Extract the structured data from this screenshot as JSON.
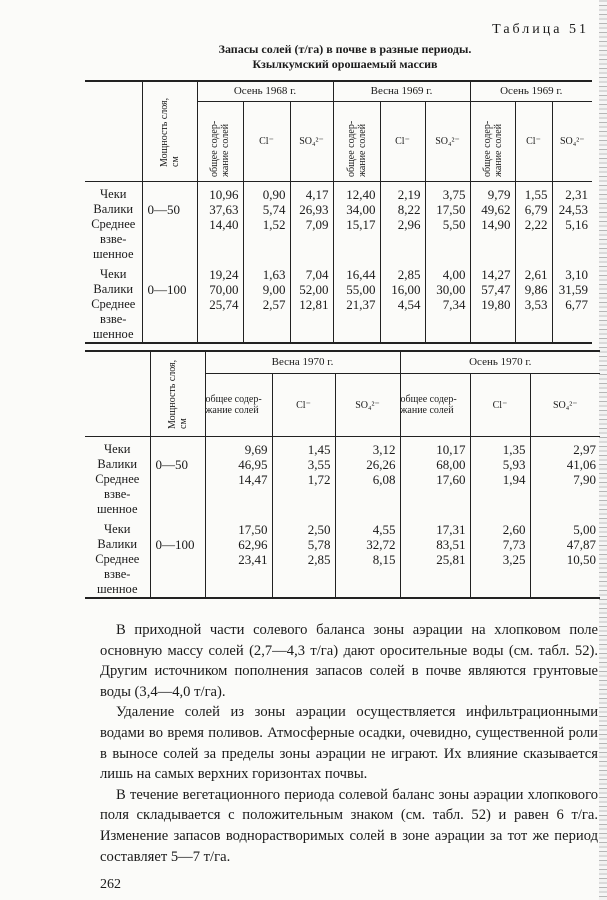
{
  "table_label": "Таблица 51",
  "title_lines": [
    "Запасы солей (т/га) в почве в разные периоды.",
    "Кзылкумский орошаемый массив"
  ],
  "thickness_header_1": "Мощность слоя, см",
  "thickness_header_2": "Мощность слоя, см",
  "col_total": "общее содер-жание солей",
  "col_cl": "Cl⁻",
  "col_so4": "SO₄²⁻",
  "row_labels": [
    "Чеки",
    "Валики",
    "Среднее",
    "взве-",
    "шенное"
  ],
  "table1": {
    "groups": [
      "Осень 1968 г.",
      "Весна 1969 г.",
      "Осень 1969 г."
    ],
    "rows": [
      {
        "thickness": "0—50",
        "values": [
          [
            "10,96",
            "37,63",
            "14,40"
          ],
          [
            "0,90",
            "5,74",
            "1,52"
          ],
          [
            "4,17",
            "26,93",
            "7,09"
          ],
          [
            "12,40",
            "34,00",
            "15,17"
          ],
          [
            "2,19",
            "8,22",
            "2,96"
          ],
          [
            "3,75",
            "17,50",
            "5,50"
          ],
          [
            "9,79",
            "49,62",
            "14,90"
          ],
          [
            "1,55",
            "6,79",
            "2,22"
          ],
          [
            "2,31",
            "24,53",
            "5,16"
          ]
        ]
      },
      {
        "thickness": "0—100",
        "values": [
          [
            "19,24",
            "70,00",
            "25,74"
          ],
          [
            "1,63",
            "9,00",
            "2,57"
          ],
          [
            "7,04",
            "52,00",
            "12,81"
          ],
          [
            "16,44",
            "55,00",
            "21,37"
          ],
          [
            "2,85",
            "16,00",
            "4,54"
          ],
          [
            "4,00",
            "30,00",
            "7,34"
          ],
          [
            "14,27",
            "57,47",
            "19,80"
          ],
          [
            "2,61",
            "9,86",
            "3,53"
          ],
          [
            "3,10",
            "31,59",
            "6,77"
          ]
        ]
      }
    ]
  },
  "table2": {
    "groups": [
      "Весна 1970 г.",
      "Осень 1970 г."
    ],
    "rows": [
      {
        "thickness": "0—50",
        "values": [
          [
            "9,69",
            "46,95",
            "14,47"
          ],
          [
            "1,45",
            "3,55",
            "1,72"
          ],
          [
            "3,12",
            "26,26",
            "6,08"
          ],
          [
            "10,17",
            "68,00",
            "17,60"
          ],
          [
            "1,35",
            "5,93",
            "1,94"
          ],
          [
            "2,97",
            "41,06",
            "7,90"
          ]
        ]
      },
      {
        "thickness": "0—100",
        "values": [
          [
            "17,50",
            "62,96",
            "23,41"
          ],
          [
            "2,50",
            "5,78",
            "2,85"
          ],
          [
            "4,55",
            "32,72",
            "8,15"
          ],
          [
            "17,31",
            "83,51",
            "25,81"
          ],
          [
            "2,60",
            "7,73",
            "3,25"
          ],
          [
            "5,00",
            "47,87",
            "10,50"
          ]
        ]
      }
    ]
  },
  "paragraphs": [
    "В приходной части солевого баланса зоны аэрации на хлопковом поле основную массу солей (2,7—4,3 т/га) дают оросительные воды (см. табл. 52). Другим источником пополнения запасов солей в почве являются грунтовые воды (3,4—4,0 т/га).",
    "Удаление солей из зоны аэрации осуществляется инфильтрационными водами во время поливов. Атмосферные осадки, очевидно, существенной роли в выносе солей за пределы зоны аэрации не играют. Их влияние сказывается лишь на самых верхних горизонтах почвы.",
    "В течение вегетационного периода солевой баланс зоны аэрации хлопкового поля складывается с положительным знаком (см. табл. 52) и равен 6 т/га. Изменение запасов воднорастворимых солей в зоне аэрации за тот же период составляет 5—7 т/га."
  ],
  "page_number": "262"
}
